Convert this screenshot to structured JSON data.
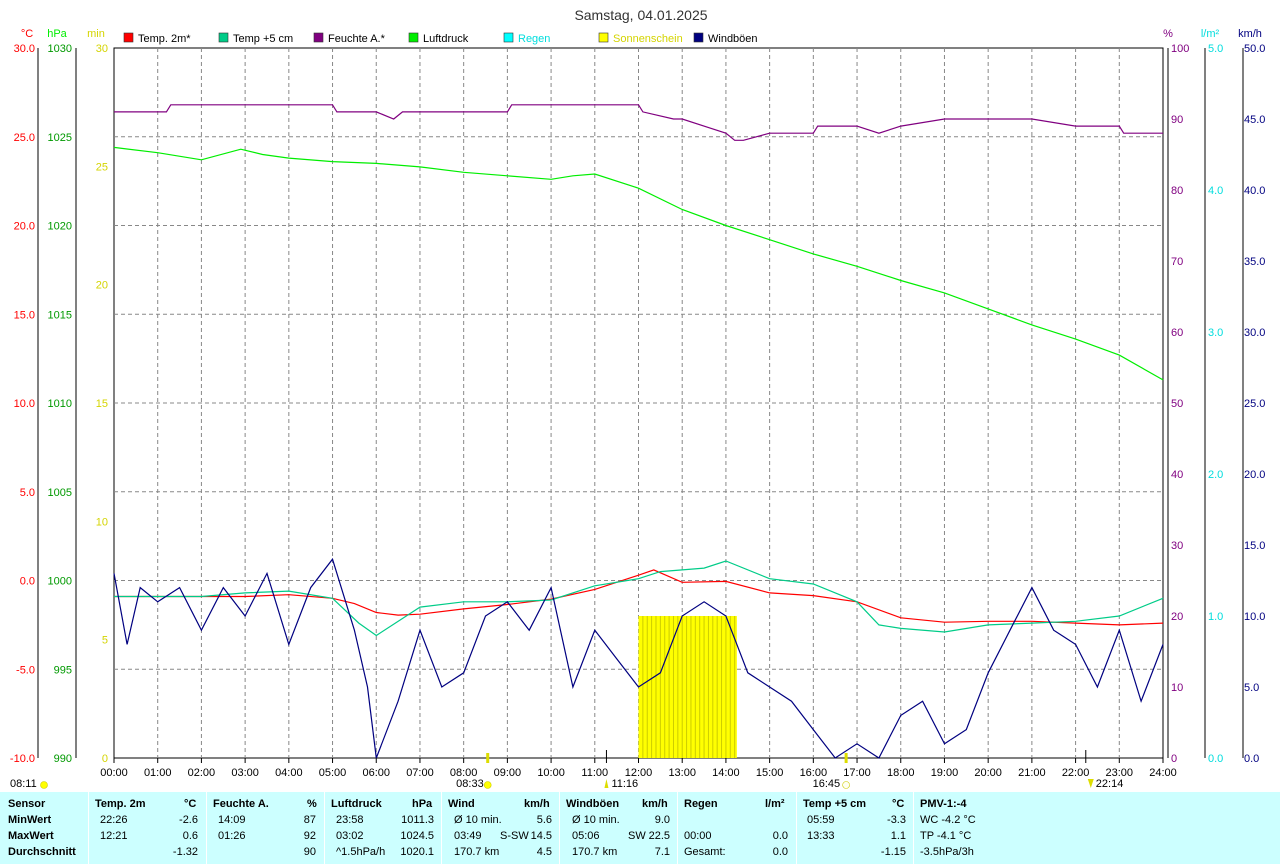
{
  "title": "Samstag, 04.01.2025",
  "axis_units": {
    "temp": "°C",
    "pressure": "hPa",
    "sun": "min",
    "humidity": "%",
    "rain": "l/m²",
    "wind": "km/h"
  },
  "legend": [
    {
      "label": "Temp. 2m*",
      "color": "#ff0000"
    },
    {
      "label": "Temp +5 cm",
      "color": "#00cc88"
    },
    {
      "label": "Feuchte A.*",
      "color": "#800080"
    },
    {
      "label": "Luftdruck",
      "color": "#00ee00"
    },
    {
      "label": "Regen",
      "color": "#00ffff"
    },
    {
      "label": "Sonnenschein",
      "color": "#ffff00"
    },
    {
      "label": "Windböen",
      "color": "#000080"
    }
  ],
  "colors": {
    "temp": "#ff0000",
    "temp5": "#00cc88",
    "humidity": "#800080",
    "pressure": "#00ee00",
    "rain": "#00dddd",
    "sun": "#ffff00",
    "sunlabel": "#d4d400",
    "wind": "#000080"
  },
  "chart_data": {
    "type": "line",
    "x_range": [
      "00:00",
      "24:00"
    ],
    "x_ticks": [
      "00:00",
      "01:00",
      "02:00",
      "03:00",
      "04:00",
      "05:00",
      "06:00",
      "07:00",
      "08:00",
      "09:00",
      "10:00",
      "11:00",
      "12:00",
      "13:00",
      "14:00",
      "15:00",
      "16:00",
      "17:00",
      "18:00",
      "19:00",
      "20:00",
      "21:00",
      "22:00",
      "23:00",
      "24:00"
    ],
    "axes": {
      "temp": {
        "range": [
          -10,
          30
        ],
        "ticks": [
          "30.0",
          "25.0",
          "20.0",
          "15.0",
          "10.0",
          "5.0",
          "0.0",
          "-5.0",
          "-10.0"
        ]
      },
      "pressure": {
        "range": [
          990,
          1030
        ],
        "ticks": [
          "1030",
          "1025",
          "1020",
          "1015",
          "1010",
          "1005",
          "1000",
          "995",
          "990"
        ]
      },
      "sun": {
        "range": [
          0,
          30
        ],
        "ticks": [
          "30",
          "25",
          "20",
          "15",
          "10",
          "5",
          "0"
        ]
      },
      "humidity": {
        "range": [
          0,
          100
        ],
        "ticks": [
          "100",
          "90",
          "80",
          "70",
          "60",
          "50",
          "40",
          "30",
          "20",
          "10",
          "0"
        ]
      },
      "rain": {
        "range": [
          0,
          5
        ],
        "ticks": [
          "5.0",
          "4.0",
          "3.0",
          "2.0",
          "1.0",
          "0.0"
        ]
      },
      "wind": {
        "range": [
          0,
          50
        ],
        "ticks": [
          "50.0",
          "45.0",
          "40.0",
          "35.0",
          "30.0",
          "25.0",
          "20.0",
          "15.0",
          "10.0",
          "5.0",
          "0.0"
        ]
      }
    },
    "series": [
      {
        "name": "Temp. 2m*",
        "axis": "temp",
        "x": [
          0,
          1,
          2,
          3,
          4,
          5,
          5.5,
          6,
          6.5,
          7,
          8,
          9,
          10,
          11,
          12,
          12.35,
          13,
          14,
          15,
          16,
          17,
          18,
          19,
          20,
          21,
          22,
          23,
          24
        ],
        "values": [
          -0.9,
          -0.9,
          -0.9,
          -0.9,
          -0.8,
          -1.0,
          -1.3,
          -1.8,
          -1.95,
          -1.9,
          -1.6,
          -1.35,
          -1.05,
          -0.5,
          0.3,
          0.6,
          -0.1,
          -0.05,
          -0.7,
          -0.85,
          -1.2,
          -2.1,
          -2.35,
          -2.3,
          -2.3,
          -2.4,
          -2.5,
          -2.4
        ]
      },
      {
        "name": "Temp +5 cm",
        "axis": "temp",
        "x": [
          0,
          2,
          3,
          4,
          5,
          5.6,
          6,
          7,
          8,
          9,
          10,
          11,
          12,
          12.5,
          13.5,
          14,
          15,
          16,
          17,
          17.5,
          18,
          19,
          20,
          21,
          22,
          23,
          24
        ],
        "values": [
          -0.9,
          -0.9,
          -0.7,
          -0.6,
          -1.0,
          -2.4,
          -3.1,
          -1.5,
          -1.2,
          -1.2,
          -1.1,
          -0.3,
          0.1,
          0.5,
          0.7,
          1.1,
          0.1,
          -0.2,
          -1.2,
          -2.5,
          -2.7,
          -2.9,
          -2.5,
          -2.4,
          -2.3,
          -2.0,
          -1.0
        ]
      },
      {
        "name": "Feuchte A.*",
        "axis": "humidity",
        "x": [
          0,
          1.2,
          1.3,
          2,
          3,
          4,
          5,
          5.1,
          6,
          6.4,
          6.6,
          7,
          8,
          9,
          9.1,
          10,
          11,
          12,
          12.1,
          12.8,
          13,
          14,
          14.2,
          14.4,
          15,
          16,
          16.1,
          17,
          17.5,
          18,
          19,
          20,
          21,
          22,
          23,
          23.1,
          23.5,
          24
        ],
        "values": [
          91,
          91,
          92,
          92,
          92,
          92,
          92,
          91,
          91,
          90,
          91,
          91,
          91,
          91,
          92,
          92,
          92,
          92,
          91,
          90,
          90,
          88,
          87,
          87,
          88,
          88,
          89,
          89,
          88,
          89,
          90,
          90,
          90,
          89,
          89,
          88,
          88,
          88
        ]
      },
      {
        "name": "Luftdruck",
        "axis": "pressure",
        "x": [
          0,
          1,
          2,
          2.9,
          3.4,
          4,
          5,
          6,
          7,
          8,
          9,
          10,
          10.5,
          11,
          12,
          13,
          14,
          15,
          16,
          17,
          18,
          19,
          20,
          21,
          22,
          23,
          24
        ],
        "values": [
          1024.4,
          1024.1,
          1023.7,
          1024.3,
          1024.0,
          1023.8,
          1023.6,
          1023.5,
          1023.3,
          1023.0,
          1022.8,
          1022.6,
          1022.8,
          1022.9,
          1022.1,
          1020.9,
          1020.0,
          1019.2,
          1018.4,
          1017.7,
          1016.9,
          1016.2,
          1015.3,
          1014.4,
          1013.6,
          1012.7,
          1011.3
        ]
      },
      {
        "name": "Windböen",
        "axis": "wind",
        "x": [
          0,
          0.3,
          0.6,
          1,
          1.5,
          2,
          2.5,
          3,
          3.5,
          4,
          4.5,
          5,
          5.5,
          5.8,
          6,
          6.5,
          7,
          7.5,
          8,
          8.5,
          9,
          9.5,
          10,
          10.5,
          11,
          11.5,
          12,
          12.5,
          13,
          13.5,
          14,
          14.5,
          15,
          15.5,
          16,
          16.5,
          17,
          17.5,
          18,
          18.5,
          19,
          19.5,
          20,
          20.5,
          21,
          21.5,
          22,
          22.5,
          23,
          23.5,
          24
        ],
        "values": [
          13,
          8,
          12,
          11,
          12,
          9,
          12,
          10,
          13,
          8,
          12,
          14,
          9,
          5,
          0,
          4,
          9,
          5,
          6,
          10,
          11,
          9,
          12,
          5,
          9,
          7,
          5,
          6,
          10,
          11,
          10,
          6,
          5,
          4,
          2,
          0,
          1,
          0,
          3,
          4,
          1,
          2,
          6,
          9,
          12,
          9,
          8,
          5,
          9,
          4,
          8
        ]
      }
    ],
    "sunshine": {
      "axis": "sun",
      "start": "12:00",
      "end": "14:15",
      "minutes_per_bin": 6
    }
  },
  "markers": {
    "sunrise_axis": "08:11",
    "sunrise": "08:33",
    "moonrise": "11:16",
    "sunset": "16:45",
    "moonset": "22:14"
  },
  "stats": {
    "headers": {
      "sensor": "Sensor",
      "temp2m": "Temp. 2m",
      "temp2m_unit": "°C",
      "feuchte": "Feuchte A.",
      "feuchte_unit": "%",
      "luftdruck": "Luftdruck",
      "luftdruck_unit": "hPa",
      "wind": "Wind",
      "wind_unit": "km/h",
      "windboeen": "Windböen",
      "windboeen_unit": "km/h",
      "regen": "Regen",
      "regen_unit": "l/m²",
      "temp5": "Temp +5 cm",
      "temp5_unit": "°C",
      "pmv": "PMV-1:-4"
    },
    "rows": [
      {
        "label": "MinWert",
        "t2_time": "22:26",
        "t2_val": "-2.6",
        "f_time": "14:09",
        "f_val": "87",
        "p_time": "23:58",
        "p_val": "1011.3",
        "w_label": "Ø 10 min.",
        "w_dir": "",
        "w_val": "5.6",
        "b_label": "Ø 10 min.",
        "b_dir": "",
        "b_val": "9.0",
        "r_label": "",
        "r_val": "",
        "t5_time": "05:59",
        "t5_val": "-3.3",
        "pmv": "WC -4.2 °C"
      },
      {
        "label": "MaxWert",
        "t2_time": "12:21",
        "t2_val": "0.6",
        "f_time": "01:26",
        "f_val": "92",
        "p_time": "03:02",
        "p_val": "1024.5",
        "w_label": "03:49",
        "w_dir": "S-SW",
        "w_val": "14.5",
        "b_label": "05:06",
        "b_dir": "SW",
        "b_val": "22.5",
        "r_label": "00:00",
        "r_val": "0.0",
        "t5_time": "13:33",
        "t5_val": "1.1",
        "pmv": "TP -4.1 °C"
      },
      {
        "label": "Durchschnitt",
        "t2_time": "",
        "t2_val": "-1.32",
        "f_time": "",
        "f_val": "90",
        "p_time": "^1.5hPa/h",
        "p_val": "1020.1",
        "w_label": "170.7 km",
        "w_dir": "",
        "w_val": "4.5",
        "b_label": "170.7 km",
        "b_dir": "",
        "b_val": "7.1",
        "r_label": "Gesamt:",
        "r_val": "0.0",
        "t5_time": "",
        "t5_val": "-1.15",
        "pmv": "-3.5hPa/3h"
      }
    ]
  }
}
